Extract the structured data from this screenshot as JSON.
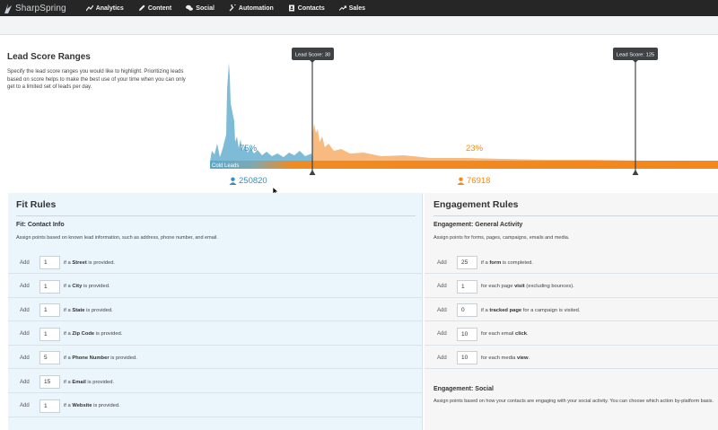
{
  "app": {
    "brand": "SharpSpring"
  },
  "nav": [
    {
      "label": "Analytics",
      "icon": "chart-line-icon"
    },
    {
      "label": "Content",
      "icon": "pencil-icon"
    },
    {
      "label": "Social",
      "icon": "chat-bubbles-icon"
    },
    {
      "label": "Automation",
      "icon": "wrench-icon"
    },
    {
      "label": "Contacts",
      "icon": "address-book-icon"
    },
    {
      "label": "Sales",
      "icon": "trend-up-icon"
    }
  ],
  "lead_score": {
    "title": "Lead Score Ranges",
    "description": "Specify the lead score ranges you would like to highlight. Prioritizing leads based on score helps to make the best use of your time when you can only get to a limited set of leads per day.",
    "cold_label": "Cold Leads",
    "marker_low_label": "Lead Score: 30",
    "marker_high_label": "Lead Score: 125",
    "pct_cold": "75%",
    "pct_warm": "23%",
    "count_cold": "250820",
    "count_warm": "76918",
    "colors": {
      "cold": "#6fb4d2",
      "warm": "#f58a1f",
      "marker": "#3f4245"
    }
  },
  "fit_rules": {
    "title": "Fit Rules",
    "subtitle": "Fit: Contact Info",
    "description": "Assign points based on known lead information, such as address, phone number, and email.",
    "rows": [
      {
        "add": "Add",
        "points": "1",
        "pre": "if a ",
        "field": "Street",
        "post": " is provided."
      },
      {
        "add": "Add",
        "points": "1",
        "pre": "if a ",
        "field": "City",
        "post": " is provided."
      },
      {
        "add": "Add",
        "points": "1",
        "pre": "if a ",
        "field": "State",
        "post": " is provided."
      },
      {
        "add": "Add",
        "points": "1",
        "pre": "if a ",
        "field": "Zip Code",
        "post": " is provided."
      },
      {
        "add": "Add",
        "points": "5",
        "pre": "if a ",
        "field": "Phone Number",
        "post": " is provided."
      },
      {
        "add": "Add",
        "points": "15",
        "pre": "if a ",
        "field": "Email",
        "post": " is provided."
      },
      {
        "add": "Add",
        "points": "1",
        "pre": "if a ",
        "field": "Website",
        "post": " is provided."
      }
    ]
  },
  "engagement_rules": {
    "title": "Engagement Rules",
    "subtitle": "Engagement: General Activity",
    "description": "Assign points for forms, pages, campaigns, emails and media.",
    "rows": [
      {
        "add": "Add",
        "points": "25",
        "pre": "if a ",
        "field": "form",
        "post": " is completed."
      },
      {
        "add": "Add",
        "points": "1",
        "pre": "for each page ",
        "field": "visit",
        "post": " (excluding bounces)."
      },
      {
        "add": "Add",
        "points": "0",
        "pre": "if a ",
        "field": "tracked page",
        "post": " for a campaign is visited."
      },
      {
        "add": "Add",
        "points": "10",
        "pre": "for each email ",
        "field": "click",
        "post": "."
      },
      {
        "add": "Add",
        "points": "10",
        "pre": "for each media ",
        "field": "view",
        "post": "."
      }
    ],
    "social_title": "Engagement: Social",
    "social_description": "Assign points based on how your contacts are engaging with your social activity. You can choose which action by-platform basis."
  }
}
